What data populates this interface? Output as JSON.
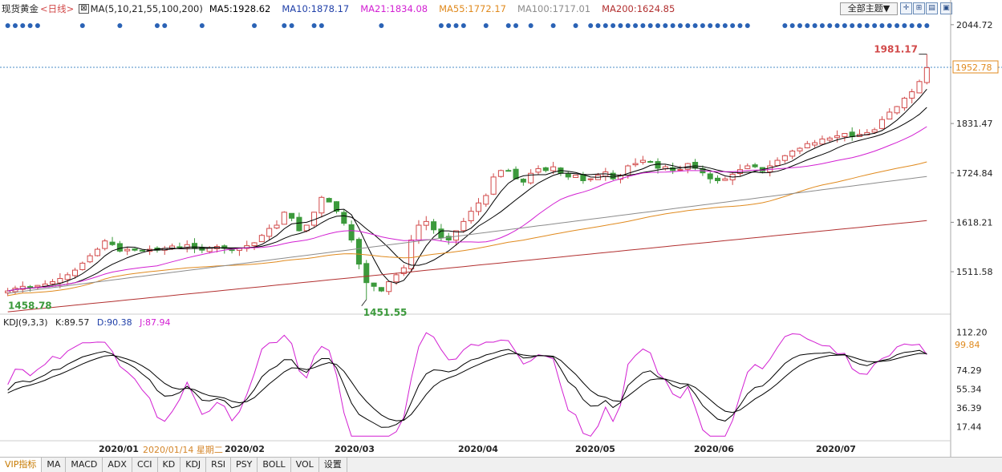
{
  "header": {
    "symbol": "现货黄金",
    "period": "<日线>",
    "ma_label": "MA(5,10,21,55,100,200)",
    "ma5": "MA5:1928.62",
    "ma10": "MA10:1878.17",
    "ma21": "MA21:1834.08",
    "ma55": "MA55:1772.17",
    "ma100": "MA100:1717.01",
    "ma200": "MA200:1624.85",
    "theme_button": "全部主题▼"
  },
  "colors": {
    "up": "#d24a4a",
    "down": "#3c9a3c",
    "ma5": "#000000",
    "ma10": "#000000",
    "ma21": "#d21fd2",
    "ma55": "#e08a1e",
    "ma100": "#8c8c8c",
    "ma200": "#b23030",
    "kdj_k": "#000000",
    "kdj_d": "#000000",
    "kdj_j": "#d21fd2",
    "dots": "#2a62b5"
  },
  "kdj": {
    "title": "KDJ(9,3,3)",
    "k": "K:89.57",
    "d": "D:90.38",
    "j": "J:87.94"
  },
  "hover_date": "2020/01/14 星期二",
  "tabs": [
    "VIP指标",
    "MA",
    "MACD",
    "ADX",
    "CCI",
    "KD",
    "KDJ",
    "RSI",
    "PSY",
    "BOLL",
    "VOL",
    "设置"
  ],
  "chart_data": {
    "type": "candlestick",
    "price_axis_ticks": [
      "2044.72",
      "1831.47",
      "1724.84",
      "1618.21",
      "1511.58"
    ],
    "current_price": "1952.78",
    "high_annotation": "1981.17",
    "low_annotations": [
      "1458.78",
      "1451.55"
    ],
    "kdj_axis_ticks": [
      "112.20",
      "74.29",
      "55.34",
      "36.39",
      "17.44"
    ],
    "kdj_current": "99.84",
    "x_labels": [
      "2020/01",
      "2020/02",
      "2020/03",
      "2020/04",
      "2020/05",
      "2020/06",
      "2020/07"
    ],
    "ylim": [
      1420,
      2060
    ],
    "kdj_ylim": [
      5,
      120
    ],
    "close_path": [
      1470,
      1476,
      1480,
      1478,
      1482,
      1485,
      1490,
      1497,
      1505,
      1515,
      1530,
      1546,
      1560,
      1578,
      1570,
      1556,
      1560,
      1558,
      1556,
      1560,
      1558,
      1562,
      1567,
      1565,
      1570,
      1562,
      1558,
      1563,
      1566,
      1562,
      1558,
      1562,
      1568,
      1574,
      1590,
      1605,
      1612,
      1640,
      1627,
      1600,
      1612,
      1640,
      1672,
      1662,
      1642,
      1616,
      1580,
      1528,
      1488,
      1480,
      1470,
      1490,
      1505,
      1520,
      1580,
      1612,
      1620,
      1602,
      1585,
      1580,
      1600,
      1620,
      1642,
      1660,
      1676,
      1716,
      1730,
      1730,
      1712,
      1705,
      1724,
      1734,
      1730,
      1738,
      1724,
      1716,
      1720,
      1708,
      1712,
      1720,
      1727,
      1712,
      1720,
      1740,
      1745,
      1752,
      1748,
      1735,
      1738,
      1730,
      1732,
      1745,
      1735,
      1725,
      1712,
      1708,
      1712,
      1722,
      1732,
      1740,
      1738,
      1728,
      1740,
      1752,
      1762,
      1772,
      1778,
      1788,
      1790,
      1798,
      1800,
      1805,
      1810,
      1803,
      1808,
      1812,
      1818,
      1840,
      1856,
      1868,
      1886,
      1900,
      1922,
      1952
    ]
  }
}
